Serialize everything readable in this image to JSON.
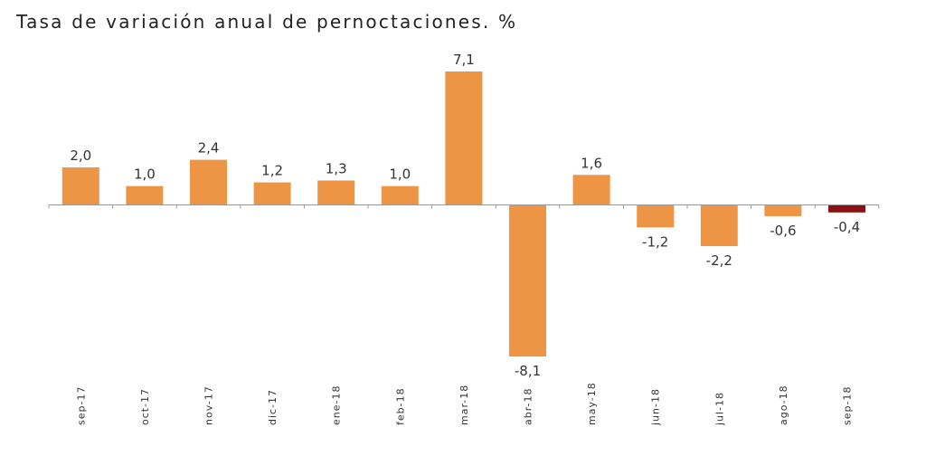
{
  "chart_data": {
    "type": "bar",
    "title": "Tasa de variación anual de pernoctaciones. %",
    "xlabel": "",
    "ylabel": "",
    "categories": [
      "sep-17",
      "oct-17",
      "nov-17",
      "dic-17",
      "ene-18",
      "feb-18",
      "mar-18",
      "abr-18",
      "may-18",
      "jun-18",
      "jul-18",
      "ago-18",
      "sep-18"
    ],
    "values": [
      2.0,
      1.0,
      2.4,
      1.2,
      1.3,
      1.0,
      7.1,
      -8.1,
      1.6,
      -1.2,
      -2.2,
      -0.6,
      -0.4
    ],
    "value_labels": [
      "2,0",
      "1,0",
      "2,4",
      "1,2",
      "1,3",
      "1,0",
      "7,1",
      "-8,1",
      "1,6",
      "-1,2",
      "-2,2",
      "-0,6",
      "-0,4"
    ],
    "ylim": [
      -8.1,
      7.1
    ],
    "grid": false,
    "legend": "none",
    "colors": {
      "bar": "#EE9445",
      "highlight_bar": "#8B1212",
      "axis": "#999999"
    },
    "highlight_index": 12
  }
}
